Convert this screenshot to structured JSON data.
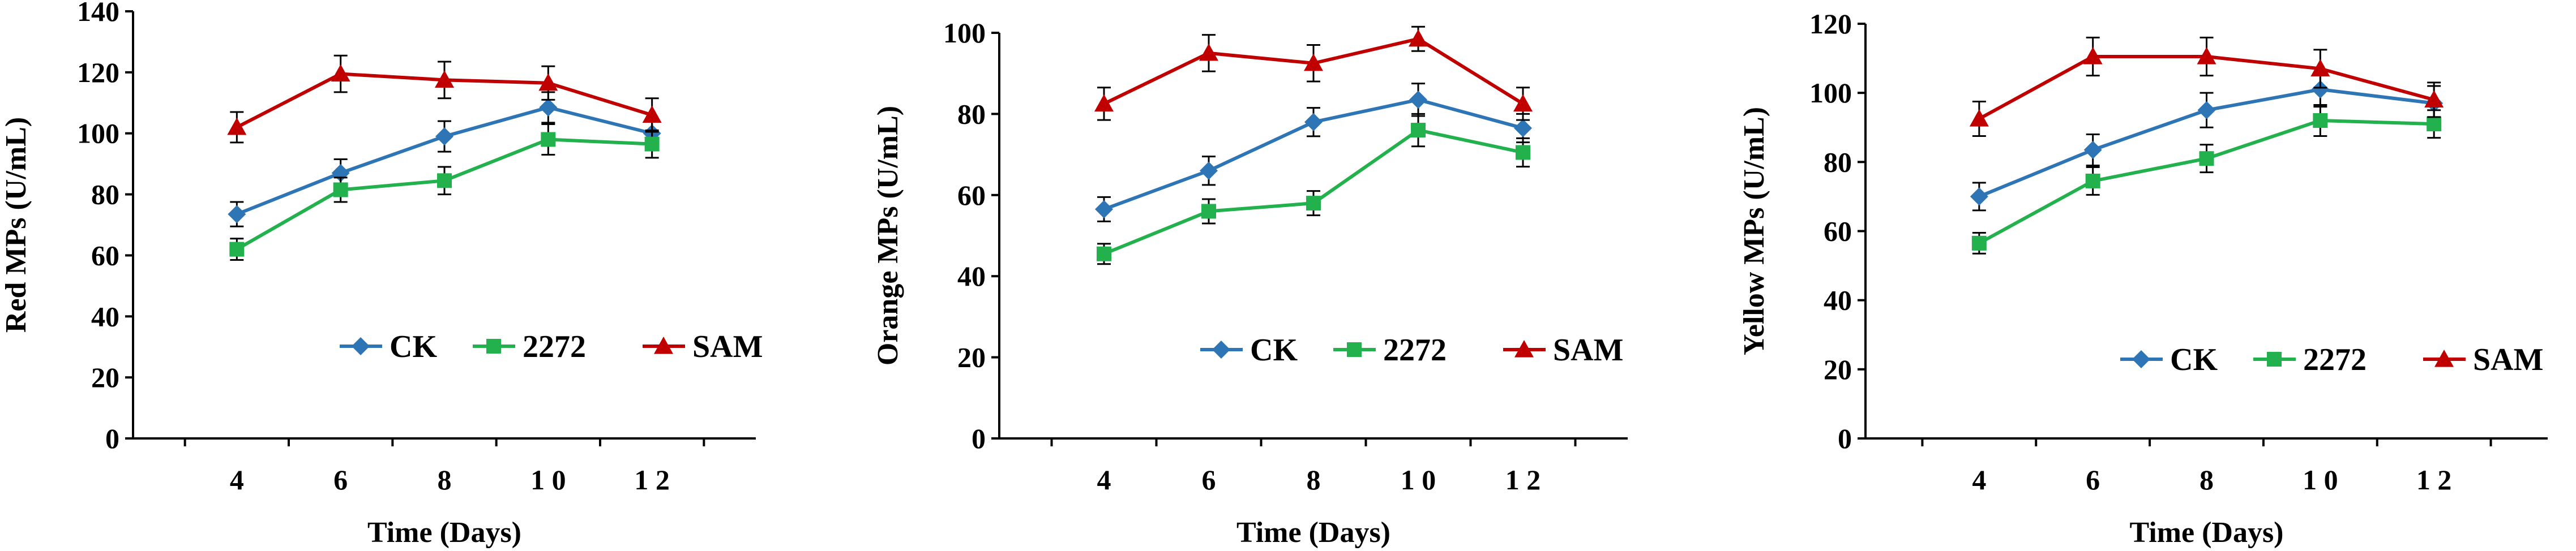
{
  "chart_data": [
    {
      "type": "line",
      "title": "",
      "xlabel": "Time (Days)",
      "ylabel": "Red MPs (U/mL)",
      "x": [
        4,
        6,
        8,
        10,
        12
      ],
      "ylim": [
        0,
        140
      ],
      "yticks": [
        0,
        20,
        40,
        60,
        80,
        100,
        120,
        140
      ],
      "xtick_labels": [
        "4",
        "6",
        "8",
        "1 0",
        "1 2"
      ],
      "grid": false,
      "legend_position": "bottom-right",
      "series": [
        {
          "name": "CK",
          "color": "#2E75B6",
          "marker": "diamond",
          "values": [
            73.5,
            87,
            99,
            108.5,
            100
          ],
          "errors": [
            4,
            4.5,
            5,
            5,
            4
          ]
        },
        {
          "name": "2272",
          "color": "#22B14C",
          "marker": "square",
          "values": [
            62,
            81.5,
            84.5,
            98,
            96.5
          ],
          "errors": [
            3.5,
            4,
            4.5,
            5,
            4.5
          ]
        },
        {
          "name": "SAM",
          "color": "#C00000",
          "marker": "triangle",
          "values": [
            102,
            119.5,
            117.5,
            116.5,
            106
          ],
          "errors": [
            5,
            6,
            6,
            5.5,
            5.5
          ]
        }
      ]
    },
    {
      "type": "line",
      "title": "",
      "xlabel": "Time (Days)",
      "ylabel": "Orange MPs (U/mL)",
      "x": [
        4,
        6,
        8,
        10,
        12
      ],
      "ylim": [
        0,
        100
      ],
      "yticks": [
        0,
        20,
        40,
        60,
        80,
        100
      ],
      "xtick_labels": [
        "4",
        "6",
        "8",
        "1 0",
        "1 2"
      ],
      "grid": false,
      "legend_position": "bottom-right",
      "series": [
        {
          "name": "CK",
          "color": "#2E75B6",
          "marker": "diamond",
          "values": [
            56.5,
            66,
            78,
            83.5,
            76.5
          ],
          "errors": [
            3,
            3.5,
            3.5,
            4,
            3.5
          ]
        },
        {
          "name": "2272",
          "color": "#22B14C",
          "marker": "square",
          "values": [
            45.5,
            56,
            58,
            76,
            70.5
          ],
          "errors": [
            2.5,
            3,
            3,
            4,
            3.5
          ]
        },
        {
          "name": "SAM",
          "color": "#C00000",
          "marker": "triangle",
          "values": [
            82.5,
            95,
            92.5,
            98.5,
            82.5
          ],
          "errors": [
            4,
            4.5,
            4.5,
            3,
            4
          ]
        }
      ]
    },
    {
      "type": "line",
      "title": "",
      "xlabel": "Time (Days)",
      "ylabel": "Yellow MPs (U/mL)",
      "x": [
        4,
        6,
        8,
        10,
        12
      ],
      "ylim": [
        0,
        120
      ],
      "yticks": [
        0,
        20,
        40,
        60,
        80,
        100,
        120
      ],
      "xtick_labels": [
        "4",
        "6",
        "8",
        "1 0",
        "1 2"
      ],
      "grid": false,
      "legend_position": "bottom-right",
      "series": [
        {
          "name": "CK",
          "color": "#2E75B6",
          "marker": "diamond",
          "values": [
            70,
            83.5,
            95,
            101,
            97
          ],
          "errors": [
            4,
            4.5,
            5,
            5,
            5
          ]
        },
        {
          "name": "2272",
          "color": "#22B14C",
          "marker": "square",
          "values": [
            56.5,
            74.5,
            81,
            92,
            91
          ],
          "errors": [
            3,
            4,
            4,
            4.5,
            4
          ]
        },
        {
          "name": "SAM",
          "color": "#C00000",
          "marker": "triangle",
          "values": [
            92.5,
            110.5,
            110.5,
            107,
            98
          ],
          "errors": [
            5,
            5.5,
            5.5,
            5.5,
            5
          ]
        }
      ]
    }
  ]
}
